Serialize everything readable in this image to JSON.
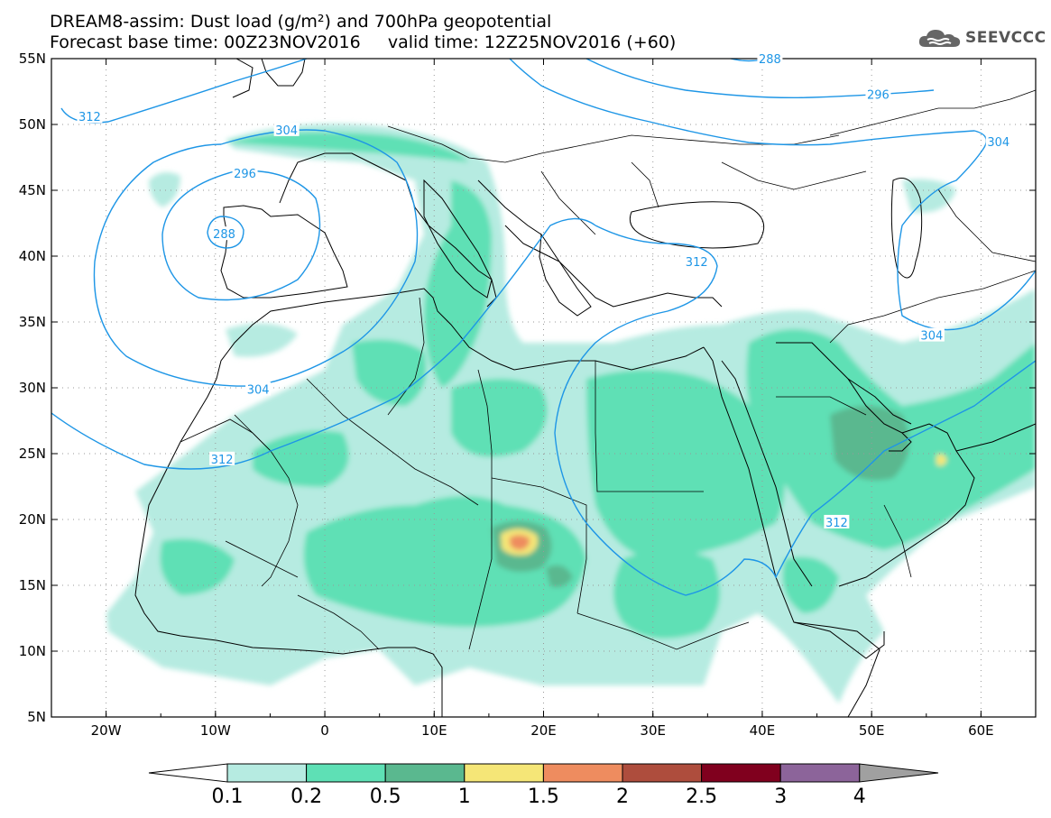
{
  "title": {
    "line1": "DREAM8-assim: Dust load (g/m²) and 700hPa geopotential",
    "line2": "Forecast base time: 00Z23NOV2016     valid time: 12Z25NOV2016 (+60)"
  },
  "logo": {
    "text": "SEEVCCC",
    "icon": "cloud-icon"
  },
  "map": {
    "lat_labels": [
      "55N",
      "50N",
      "45N",
      "40N",
      "35N",
      "30N",
      "25N",
      "20N",
      "15N",
      "10N",
      "5N"
    ],
    "lat_values": [
      55,
      50,
      45,
      40,
      35,
      30,
      25,
      20,
      15,
      10,
      5
    ],
    "lon_labels": [
      "20W",
      "10W",
      "0",
      "10E",
      "20E",
      "30E",
      "40E",
      "50E",
      "60E"
    ],
    "lon_values": [
      -20,
      -10,
      0,
      10,
      20,
      30,
      40,
      50,
      60
    ],
    "extent": {
      "lon": [
        -25,
        65
      ],
      "lat": [
        5,
        55
      ]
    },
    "grid": "dotted",
    "contour_labels": [
      {
        "text": "312",
        "lon": -21.5,
        "lat": 50.6
      },
      {
        "text": "304",
        "lon": -3.5,
        "lat": 49.6
      },
      {
        "text": "296",
        "lon": -7.3,
        "lat": 46.3
      },
      {
        "text": "288",
        "lon": -9.2,
        "lat": 41.7
      },
      {
        "text": "304",
        "lon": -6.1,
        "lat": 29.9
      },
      {
        "text": "312",
        "lon": -9.4,
        "lat": 24.6
      },
      {
        "text": "312",
        "lon": 34.0,
        "lat": 39.6
      },
      {
        "text": "296",
        "lon": 50.6,
        "lat": 52.3
      },
      {
        "text": "304",
        "lon": 61.6,
        "lat": 48.7
      },
      {
        "text": "304",
        "lon": 55.5,
        "lat": 34.0
      },
      {
        "text": "312",
        "lon": 46.8,
        "lat": 19.8
      },
      {
        "text": "288",
        "lon": 40.7,
        "lat": 55.0
      }
    ]
  },
  "colors": {
    "contour": "#1e96e6",
    "levels": [
      "#ffffff",
      "#b6ebe1",
      "#5ee0b5",
      "#5ab88f",
      "#f5e677",
      "#ee8c5f",
      "#ae4d3d",
      "#80001e",
      "#8c649a",
      "#a0a0a0"
    ]
  },
  "colorbar": {
    "labels": [
      "0.1",
      "0.2",
      "0.5",
      "1",
      "1.5",
      "2",
      "2.5",
      "3",
      "4"
    ],
    "colors": [
      "#b6ebe1",
      "#5ee0b5",
      "#5ab88f",
      "#f5e677",
      "#ee8c5f",
      "#ae4d3d",
      "#80001e",
      "#8c649a"
    ],
    "under": "#ffffff",
    "over": "#a0a0a0"
  }
}
